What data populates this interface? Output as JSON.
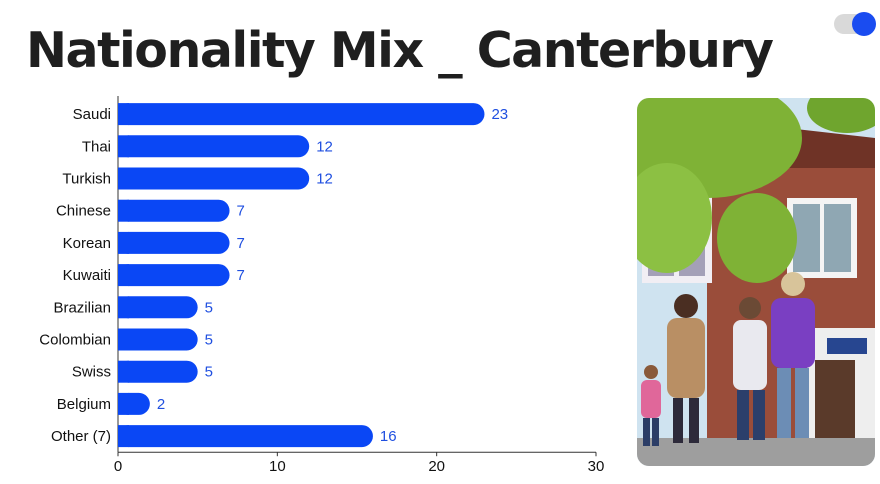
{
  "header": {
    "title": "Nationality Mix _ Canterbury"
  },
  "toggle": {
    "state": "on",
    "color": "#1a4cf0"
  },
  "colors": {
    "bar": "#0a47f5",
    "value_text": "#1f4fe0",
    "title": "#1f1f1f"
  },
  "photo": {
    "icon": "campus-photo"
  },
  "chart_data": {
    "type": "bar",
    "orientation": "horizontal",
    "title": "Nationality Mix _ Canterbury",
    "xlabel": "",
    "ylabel": "",
    "categories": [
      "Saudi",
      "Thai",
      "Turkish",
      "Chinese",
      "Korean",
      "Kuwaiti",
      "Brazilian",
      "Colombian",
      "Swiss",
      "Belgium",
      "Other (7)"
    ],
    "values": [
      23,
      12,
      12,
      7,
      7,
      7,
      5,
      5,
      5,
      2,
      16
    ],
    "xlim": [
      0,
      30
    ],
    "xticks": [
      0,
      10,
      20,
      30
    ],
    "grid": false,
    "legend": "none",
    "data_labels": true
  }
}
